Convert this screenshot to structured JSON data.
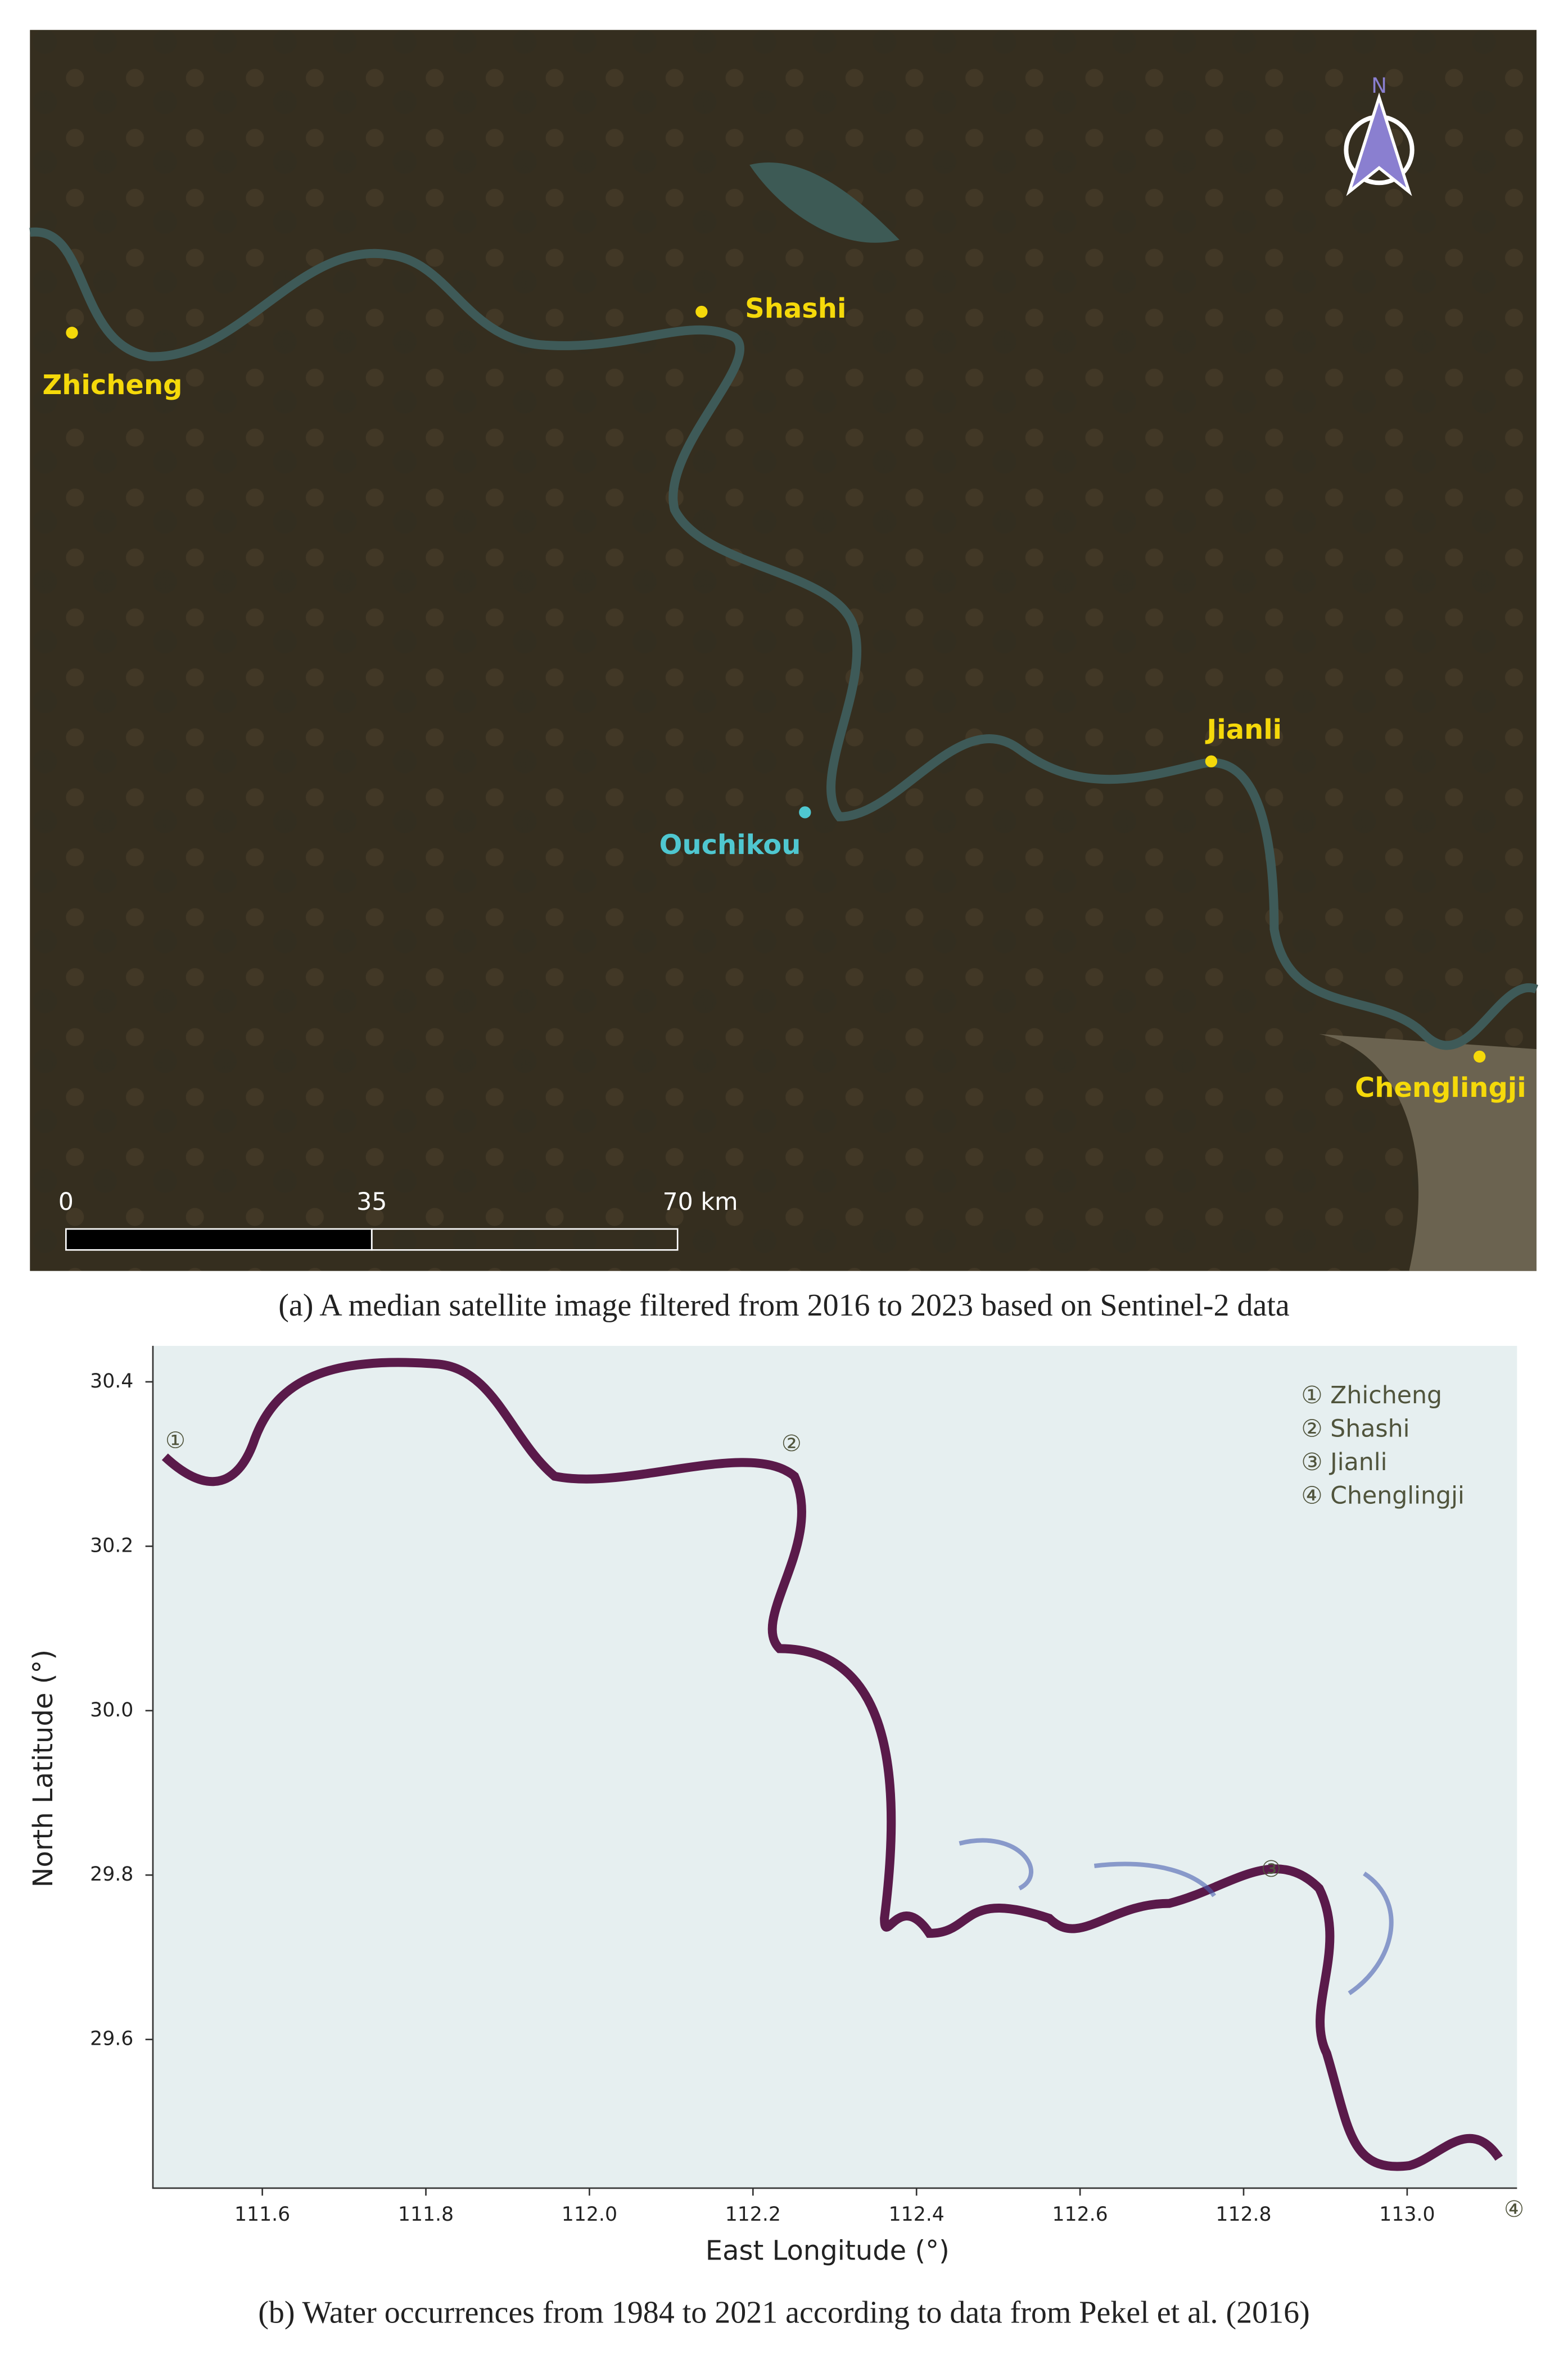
{
  "panel_a": {
    "north": "N",
    "places": [
      {
        "label": "Zhicheng"
      },
      {
        "label": "Shashi"
      },
      {
        "label": "Jianli"
      },
      {
        "label": "Ouchikou"
      },
      {
        "label": "Chenglingji"
      }
    ],
    "scale_bar": [
      "0",
      "35",
      "70 km"
    ],
    "caption": "(a) A median satellite image filtered from 2016 to 2023 based on Sentinel-2 data"
  },
  "panel_b": {
    "x_label": "East Longitude (°)",
    "y_label": "North Latitude (°)",
    "xticks": [
      "111.6",
      "111.8",
      "112.0",
      "112.2",
      "112.4",
      "112.6",
      "112.8",
      "113.0"
    ],
    "yticks": [
      "30.4",
      "30.2",
      "30.0",
      "29.8",
      "29.6"
    ],
    "markers": [
      "①",
      "②",
      "③",
      "④"
    ],
    "legend": [
      "① Zhicheng",
      "② Shashi",
      "③ Jianli",
      "④ Chenglingji"
    ],
    "caption": "(b) Water occurrences from 1984 to 2021 according to data from Pekel et al. (2016)"
  }
}
